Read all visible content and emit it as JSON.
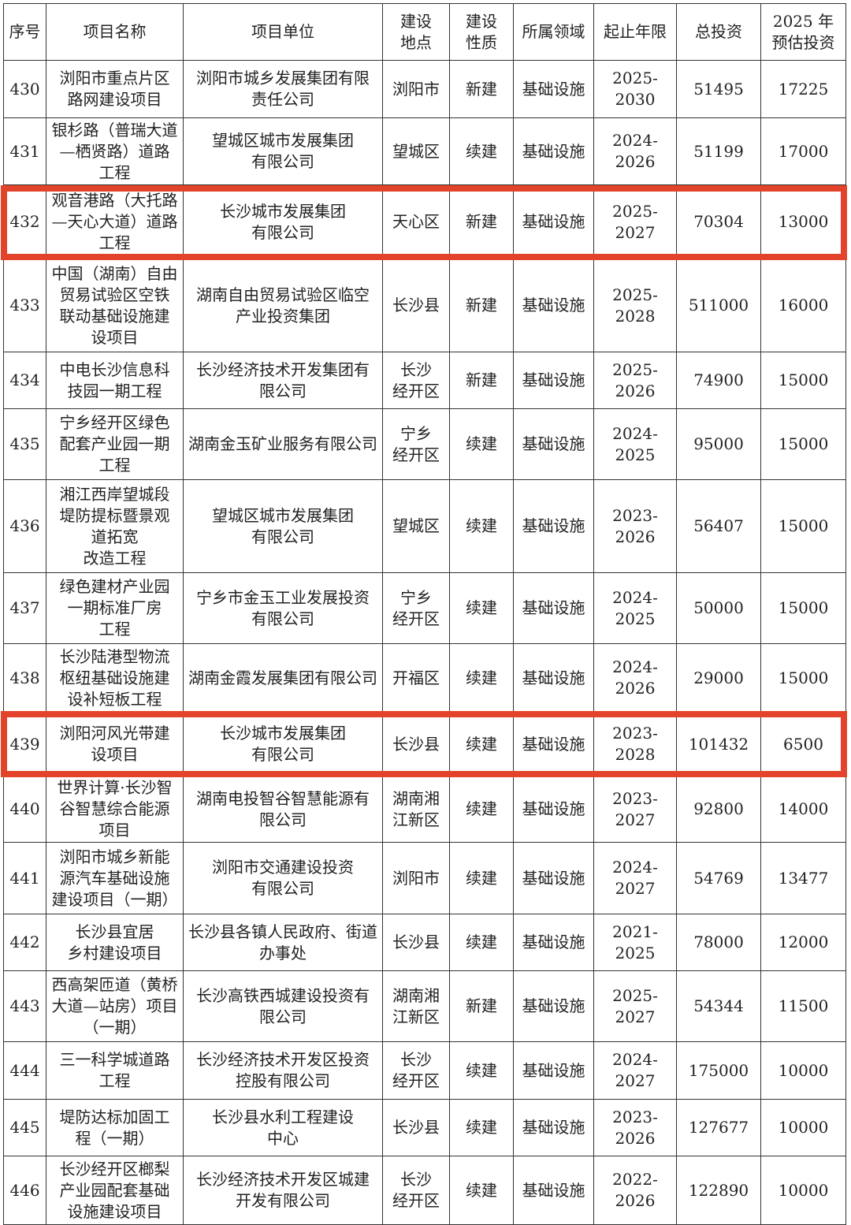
{
  "headers": [
    "序号",
    "项目名称",
    "项目单位",
    "建设\n地点",
    "建设\n性质",
    "所属领域",
    "起止年限",
    "总投资",
    "2025 年\n预估投资"
  ],
  "rows": [
    [
      "430",
      "浏阳市重点片区\n路网建设项目",
      "浏阳市城乡发展集团有限\n责任公司",
      "浏阳市",
      "新建",
      "基础设施",
      "2025-2030",
      "51495",
      "17225"
    ],
    [
      "431",
      "银杉路（普瑞大道\n—栖贤路）道路\n工程",
      "望城区城市发展集团\n有限公司",
      "望城区",
      "续建",
      "基础设施",
      "2024-2026",
      "51199",
      "17000"
    ],
    [
      "432",
      "观音港路（大托路\n—天心大道）道路\n工程",
      "长沙城市发展集团\n有限公司",
      "天心区",
      "新建",
      "基础设施",
      "2025-2027",
      "70304",
      "13000"
    ],
    [
      "433",
      "中国（湖南）自由\n贸易试验区空铁\n联动基础设施建\n设项目",
      "湖南自由贸易试验区临空\n产业投资集团",
      "长沙县",
      "新建",
      "基础设施",
      "2025-2028",
      "511000",
      "16000"
    ],
    [
      "434",
      "中电长沙信息科\n技园一期工程",
      "长沙经济技术开发集团有\n限公司",
      "长沙\n经开区",
      "新建",
      "基础设施",
      "2025-2026",
      "74900",
      "15000"
    ],
    [
      "435",
      "宁乡经开区绿色\n配套产业园一期\n工程",
      "湖南金玉矿业服务有限公司",
      "宁乡\n经开区",
      "续建",
      "基础设施",
      "2024-2025",
      "95000",
      "15000"
    ],
    [
      "436",
      "湘江西岸望城段\n堤防提标暨景观\n道拓宽\n改造工程",
      "望城区城市发展集团\n有限公司",
      "望城区",
      "续建",
      "基础设施",
      "2023-2026",
      "56407",
      "15000"
    ],
    [
      "437",
      "绿色建材产业园\n一期标准厂房\n工程",
      "宁乡市金玉工业发展投资\n有限公司",
      "宁乡\n经开区",
      "续建",
      "基础设施",
      "2024-2025",
      "50000",
      "15000"
    ],
    [
      "438",
      "长沙陆港型物流\n枢纽基础设施建\n设补短板工程",
      "湖南金霞发展集团有限公司",
      "开福区",
      "续建",
      "基础设施",
      "2024-2026",
      "29000",
      "15000"
    ],
    [
      "439",
      "浏阳河风光带建\n设项目",
      "长沙城市发展集团\n有限公司",
      "长沙县",
      "续建",
      "基础设施",
      "2023-2028",
      "101432",
      "6500"
    ],
    [
      "440",
      "世界计算·长沙智\n谷智慧综合能源\n项目",
      "湖南电投智谷智慧能源有\n限公司",
      "湖南湘\n江新区",
      "续建",
      "基础设施",
      "2023-2027",
      "92800",
      "14000"
    ],
    [
      "441",
      "浏阳市城乡新能\n源汽车基础设施\n建设项目（一期）",
      "浏阳市交通建设投资\n有限公司",
      "浏阳市",
      "续建",
      "基础设施",
      "2024-2027",
      "54769",
      "13477"
    ],
    [
      "442",
      "长沙县宜居\n乡村建设项目",
      "长沙县各镇人民政府、街道\n办事处",
      "长沙县",
      "续建",
      "基础设施",
      "2021-2025",
      "78000",
      "12000"
    ],
    [
      "443",
      "西高架匝道（黄桥\n大道—站房）项目\n（一期）",
      "长沙高铁西城建设投资有\n限公司",
      "湖南湘\n江新区",
      "新建",
      "基础设施",
      "2025-2027",
      "54344",
      "11500"
    ],
    [
      "444",
      "三一科学城道路\n工程",
      "长沙经济技术开发区投资\n控股有限公司",
      "长沙\n经开区",
      "续建",
      "基础设施",
      "2024-2027",
      "175000",
      "10000"
    ],
    [
      "445",
      "堤防达标加固工\n程（一期）",
      "长沙县水利工程建设\n中心",
      "长沙县",
      "续建",
      "基础设施",
      "2023-2026",
      "127677",
      "10000"
    ],
    [
      "446",
      "长沙经开区榔梨\n产业园配套基础\n设施建设项目",
      "长沙经济技术开发区城建\n开发有限公司",
      "长沙\n经开区",
      "续建",
      "基础设施",
      "2022-2026",
      "122890",
      "10000"
    ]
  ],
  "highlighted_rows": [
    "432",
    "439"
  ],
  "highlight_color": "#e2432a"
}
